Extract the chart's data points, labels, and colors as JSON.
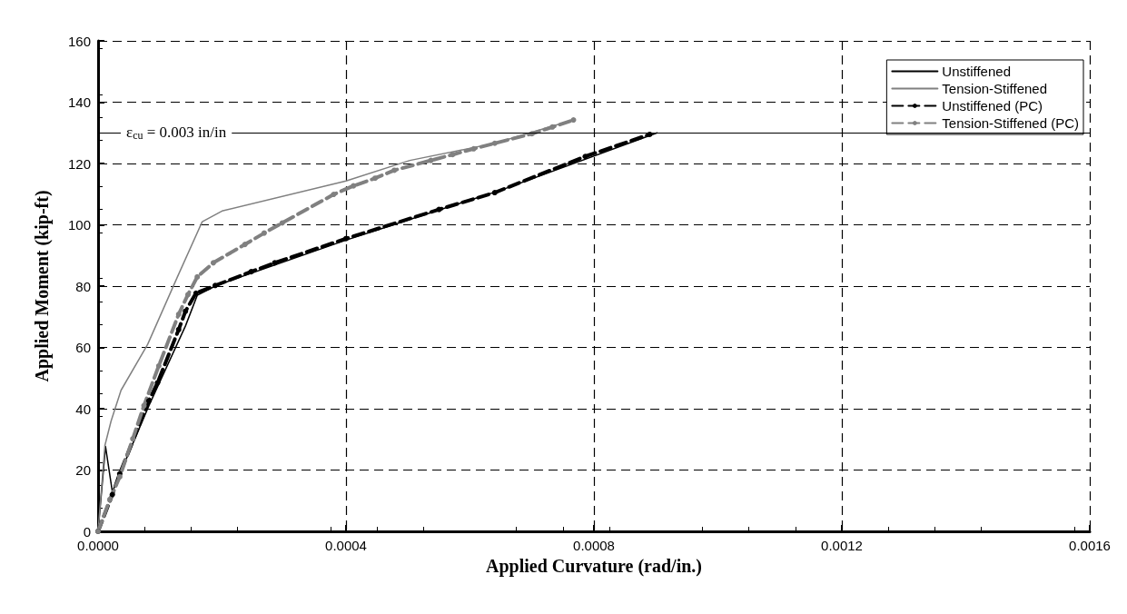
{
  "chart_data": {
    "type": "line",
    "xlabel": "Applied Curvature (rad/in.)",
    "ylabel": "Applied Moment (kip-ft)",
    "xlim": [
      0,
      0.0016
    ],
    "xticks": [
      {
        "value": 0,
        "label": "0.0000"
      },
      {
        "value": 0.0004,
        "label": "0.0004"
      },
      {
        "value": 0.0008,
        "label": "0.0008"
      },
      {
        "value": 0.0012,
        "label": "0.0012"
      },
      {
        "value": 0.0016,
        "label": "0.0016"
      }
    ],
    "ylim": [
      0,
      160
    ],
    "yticks": [
      0,
      20,
      40,
      60,
      80,
      100,
      120,
      140,
      160
    ],
    "grid": true,
    "legend": "top right",
    "ref_lines": [
      {
        "axis": "y",
        "value": 130,
        "color": "#000000",
        "line_style": "solid"
      }
    ],
    "annotations": [
      "ε$_{cu}$ = 0.003 in/in"
    ],
    "series": [
      {
        "name": "Unstiffened",
        "color": "#000000",
        "marker": "none",
        "line_style": "solid",
        "x": [
          0,
          1.2e-05,
          2.3e-05,
          8.2e-05,
          0.000141,
          0.00016,
          0.000189,
          0.000209,
          0.0004,
          0.000576,
          0.00065,
          0.000902
        ],
        "values": [
          0,
          27.7,
          12.9,
          41,
          67,
          77,
          80,
          81.5,
          95,
          106.5,
          111.3,
          130
        ]
      },
      {
        "name": "Tension-Stiffened",
        "color": "#808080",
        "marker": "none",
        "line_style": "solid",
        "x": [
          0,
          1.1e-05,
          2.1e-05,
          3.7e-05,
          8e-05,
          0.000128,
          0.000168,
          0.0002,
          0.0004,
          0.000503,
          0.00064,
          0.000767
        ],
        "values": [
          0,
          28,
          36,
          46,
          61,
          83,
          101,
          104.5,
          114.3,
          121,
          126.6,
          134.2
        ]
      },
      {
        "name": "Unstiffened (PC)",
        "color": "#000000",
        "marker": "circle",
        "line_style": "dashed",
        "x": [
          0,
          2.3e-05,
          3.5e-05,
          8.2e-05,
          9.6e-05,
          0.00013,
          0.000141,
          0.000158,
          0.000189,
          0.000247,
          0.000285,
          0.0004,
          0.00055,
          0.00064,
          0.000786,
          0.00089
        ],
        "values": [
          0,
          12,
          18.8,
          42.6,
          48.5,
          65.8,
          71.8,
          77.7,
          80.2,
          84.7,
          87.6,
          95.5,
          105,
          110.5,
          122.3,
          129.5
        ]
      },
      {
        "name": "Tension-Stiffened (PC)",
        "color": "#808080",
        "marker": "circle",
        "line_style": "dashed",
        "x": [
          0,
          1.9e-05,
          3.5e-05,
          5.6e-05,
          7.4e-05,
          9.8e-05,
          0.00013,
          0.000145,
          0.00016,
          0.000186,
          0.000237,
          0.000268,
          0.000297,
          0.00038,
          0.000412,
          0.000447,
          0.000478,
          0.000537,
          0.000572,
          0.000606,
          0.00064,
          0.0007,
          0.000733,
          0.000767
        ],
        "values": [
          0,
          10.4,
          17.8,
          30.2,
          41,
          54,
          70.8,
          77.2,
          83,
          87.6,
          93.6,
          97.3,
          100.6,
          109.9,
          112.7,
          115.2,
          117.8,
          121,
          122.9,
          124.8,
          126.6,
          129.7,
          131.9,
          134.2
        ]
      }
    ]
  }
}
